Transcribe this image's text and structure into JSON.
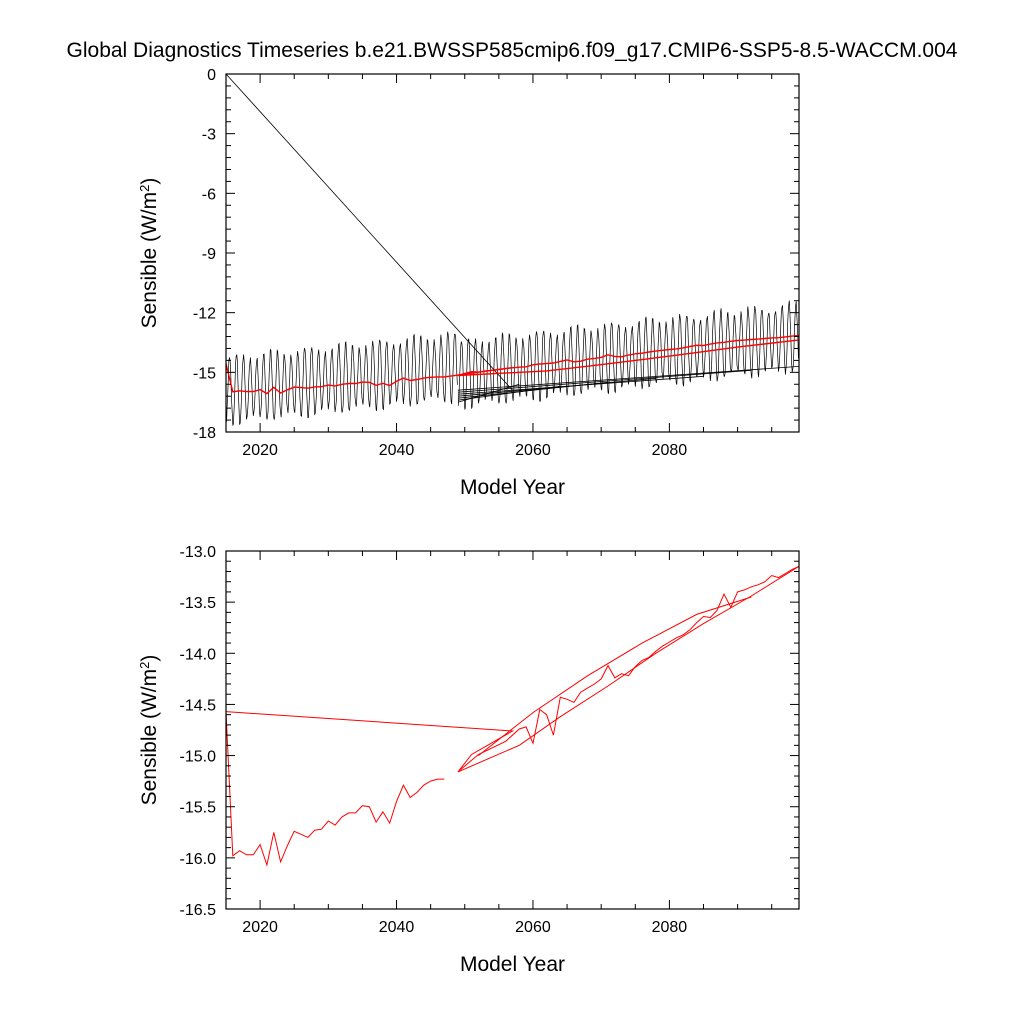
{
  "figure_title": "Global Diagnostics Timeseries b.e21.BWSSP585cmip6.f09_g17.CMIP6-SSP5-8.5-WACCM.004",
  "chart_data": [
    {
      "type": "line",
      "xlabel": "Model Year",
      "ylabel": "Sensible (W/m",
      "ylabel_sup": "2",
      "ylabel_close": ")",
      "xlim": [
        2015,
        2099
      ],
      "ylim": [
        -18,
        0
      ],
      "x_ticks": [
        2020,
        2040,
        2060,
        2080
      ],
      "y_ticks": [
        0,
        -3,
        -6,
        -9,
        -12,
        -15,
        -18
      ],
      "y_tick_labels": [
        "0",
        "-3",
        "-6",
        "-9",
        "-12",
        "-15",
        "-18"
      ],
      "series": [
        {
          "color": "#000000",
          "kind": "monthly",
          "segments": [
            {
              "start": 2015.0,
              "months": 408,
              "base_start": -15.9,
              "base_end": -14.7,
              "amplitude": 1.6
            },
            {
              "start": 2049.0,
              "months": 600,
              "base_start": -15.1,
              "base_end": -13.2,
              "amplitude": 1.6
            }
          ],
          "extra_lines": [
            {
              "x": [
                2015.0,
                2057.0
              ],
              "y": [
                0.0,
                -15.9
              ]
            },
            {
              "x": [
                2049.0,
                2058.0
              ],
              "y": [
                -16.5,
                -15.6
              ]
            },
            {
              "x": [
                2049.0,
                2064.0
              ],
              "y": [
                -16.4,
                -15.7
              ]
            },
            {
              "x": [
                2049.0,
                2071.0
              ],
              "y": [
                -16.3,
                -15.5
              ]
            },
            {
              "x": [
                2049.0,
                2078.0
              ],
              "y": [
                -16.2,
                -15.3
              ]
            },
            {
              "x": [
                2049.0,
                2085.0
              ],
              "y": [
                -16.1,
                -15.2
              ]
            },
            {
              "x": [
                2049.0,
                2092.0
              ],
              "y": [
                -16.0,
                -14.9
              ]
            },
            {
              "x": [
                2049.0,
                2099.0
              ],
              "y": [
                -15.9,
                -14.7
              ]
            }
          ]
        },
        {
          "color": "#ff0000",
          "kind": "annual",
          "x": [
            2015,
            2016,
            2017,
            2018,
            2019,
            2020,
            2021,
            2022,
            2023,
            2024,
            2025,
            2026,
            2027,
            2028,
            2029,
            2030,
            2031,
            2032,
            2033,
            2034,
            2035,
            2036,
            2037,
            2038,
            2039,
            2040,
            2041,
            2042,
            2043,
            2044,
            2045,
            2046,
            2047,
            2057
          ],
          "y": [
            -14.57,
            -15.98,
            -15.93,
            -15.97,
            -15.97,
            -15.87,
            -16.07,
            -15.75,
            -16.04,
            -15.88,
            -15.74,
            -15.77,
            -15.8,
            -15.73,
            -15.72,
            -15.64,
            -15.68,
            -15.6,
            -15.56,
            -15.56,
            -15.49,
            -15.5,
            -15.65,
            -15.55,
            -15.66,
            -15.45,
            -15.29,
            -15.41,
            -15.36,
            -15.29,
            -15.25,
            -15.23,
            -15.23,
            -14.76
          ]
        },
        {
          "color": "#ff0000",
          "kind": "annual",
          "x": [
            2049,
            2050,
            2051,
            2052,
            2053,
            2054,
            2055,
            2056,
            2057,
            2058,
            2059,
            2060,
            2061,
            2062,
            2063,
            2064,
            2065,
            2066,
            2067,
            2068,
            2069,
            2070,
            2071,
            2072,
            2073,
            2074,
            2075,
            2076,
            2077,
            2078,
            2079,
            2080,
            2081,
            2082,
            2083,
            2084,
            2085,
            2086,
            2087,
            2088,
            2089,
            2090,
            2091,
            2092,
            2093,
            2094,
            2095,
            2096,
            2097,
            2098,
            2099
          ],
          "y": [
            -15.16,
            -15.06,
            -14.97,
            -14.99,
            -14.94,
            -14.9,
            -14.86,
            -14.81,
            -14.77,
            -14.74,
            -14.72,
            -14.62,
            -14.58,
            -14.56,
            -14.53,
            -14.45,
            -14.38,
            -14.47,
            -14.44,
            -14.34,
            -14.3,
            -14.25,
            -14.12,
            -14.2,
            -14.22,
            -14.13,
            -14.07,
            -14.04,
            -13.98,
            -13.93,
            -13.89,
            -13.85,
            -13.82,
            -13.77,
            -13.7,
            -13.64,
            -13.65,
            -13.58,
            -13.52,
            -13.49,
            -13.44,
            -13.4,
            -13.38,
            -13.35,
            -13.33,
            -13.3,
            -13.27,
            -13.26,
            -13.22,
            -13.18,
            -13.15
          ]
        },
        {
          "color": "#ff0000",
          "kind": "annual",
          "x": [
            2049,
            2062,
            2069,
            2076,
            2083,
            2090,
            2099
          ],
          "y": [
            -15.16,
            -14.93,
            -14.65,
            -14.36,
            -14.05,
            -13.73,
            -13.37
          ]
        }
      ]
    },
    {
      "type": "line",
      "xlabel": "Model Year",
      "ylabel": "Sensible (W/m",
      "ylabel_sup": "2",
      "ylabel_close": ")",
      "xlim": [
        2015,
        2099
      ],
      "ylim": [
        -16.5,
        -13.0
      ],
      "x_ticks": [
        2020,
        2040,
        2060,
        2080
      ],
      "y_ticks": [
        -13.0,
        -13.5,
        -14.0,
        -14.5,
        -15.0,
        -15.5,
        -16.0,
        -16.5
      ],
      "y_tick_labels": [
        "-13.0",
        "-13.5",
        "-14.0",
        "-14.5",
        "-15.0",
        "-15.5",
        "-16.0",
        "-16.5"
      ],
      "series": [
        {
          "color": "#ff0000",
          "x": [
            2015,
            2016,
            2017,
            2018,
            2019,
            2020,
            2021,
            2022,
            2023,
            2024,
            2025,
            2026,
            2027,
            2028,
            2029,
            2030,
            2031,
            2032,
            2033,
            2034,
            2035,
            2036,
            2037,
            2038,
            2039,
            2040,
            2041,
            2042,
            2043,
            2044,
            2045,
            2046,
            2047
          ],
          "y": [
            -14.57,
            -15.98,
            -15.93,
            -15.97,
            -15.97,
            -15.87,
            -16.07,
            -15.75,
            -16.04,
            -15.88,
            -15.74,
            -15.77,
            -15.8,
            -15.73,
            -15.72,
            -15.64,
            -15.68,
            -15.6,
            -15.56,
            -15.56,
            -15.49,
            -15.5,
            -15.65,
            -15.55,
            -15.66,
            -15.45,
            -15.29,
            -15.41,
            -15.36,
            -15.29,
            -15.25,
            -15.23,
            -15.23
          ]
        },
        {
          "color": "#ff0000",
          "x": [
            2015,
            2057,
            2051,
            2049,
            2052,
            2056,
            2058,
            2059,
            2060,
            2061,
            2062,
            2063,
            2064,
            2065,
            2066,
            2067,
            2068,
            2069,
            2070,
            2071,
            2072,
            2073,
            2074,
            2075,
            2076,
            2077,
            2078,
            2079,
            2080,
            2081,
            2082,
            2083,
            2084,
            2085,
            2086,
            2087,
            2088,
            2089,
            2090,
            2091,
            2092,
            2093,
            2094,
            2095,
            2096,
            2097,
            2098,
            2099
          ],
          "y": [
            -14.57,
            -14.76,
            -14.99,
            -15.16,
            -14.99,
            -14.86,
            -14.74,
            -14.72,
            -14.88,
            -14.55,
            -14.6,
            -14.8,
            -14.43,
            -14.45,
            -14.48,
            -14.38,
            -14.34,
            -14.3,
            -14.25,
            -14.12,
            -14.24,
            -14.2,
            -14.22,
            -14.13,
            -14.07,
            -14.04,
            -13.98,
            -13.93,
            -13.89,
            -13.85,
            -13.82,
            -13.77,
            -13.7,
            -13.64,
            -13.65,
            -13.58,
            -13.42,
            -13.55,
            -13.4,
            -13.38,
            -13.35,
            -13.33,
            -13.3,
            -13.24,
            -13.26,
            -13.22,
            -13.18,
            -13.15
          ]
        },
        {
          "color": "#ff0000",
          "x": [
            2049,
            2058,
            2064,
            2071,
            2078,
            2085,
            2092,
            2099
          ],
          "y": [
            -15.16,
            -14.9,
            -14.62,
            -14.32,
            -14.0,
            -13.71,
            -13.44,
            -13.15
          ]
        },
        {
          "color": "#ff0000",
          "x": [
            2052,
            2060,
            2068,
            2076,
            2084,
            2092
          ],
          "y": [
            -15.0,
            -14.58,
            -14.22,
            -13.9,
            -13.62,
            -13.45
          ]
        }
      ]
    }
  ]
}
